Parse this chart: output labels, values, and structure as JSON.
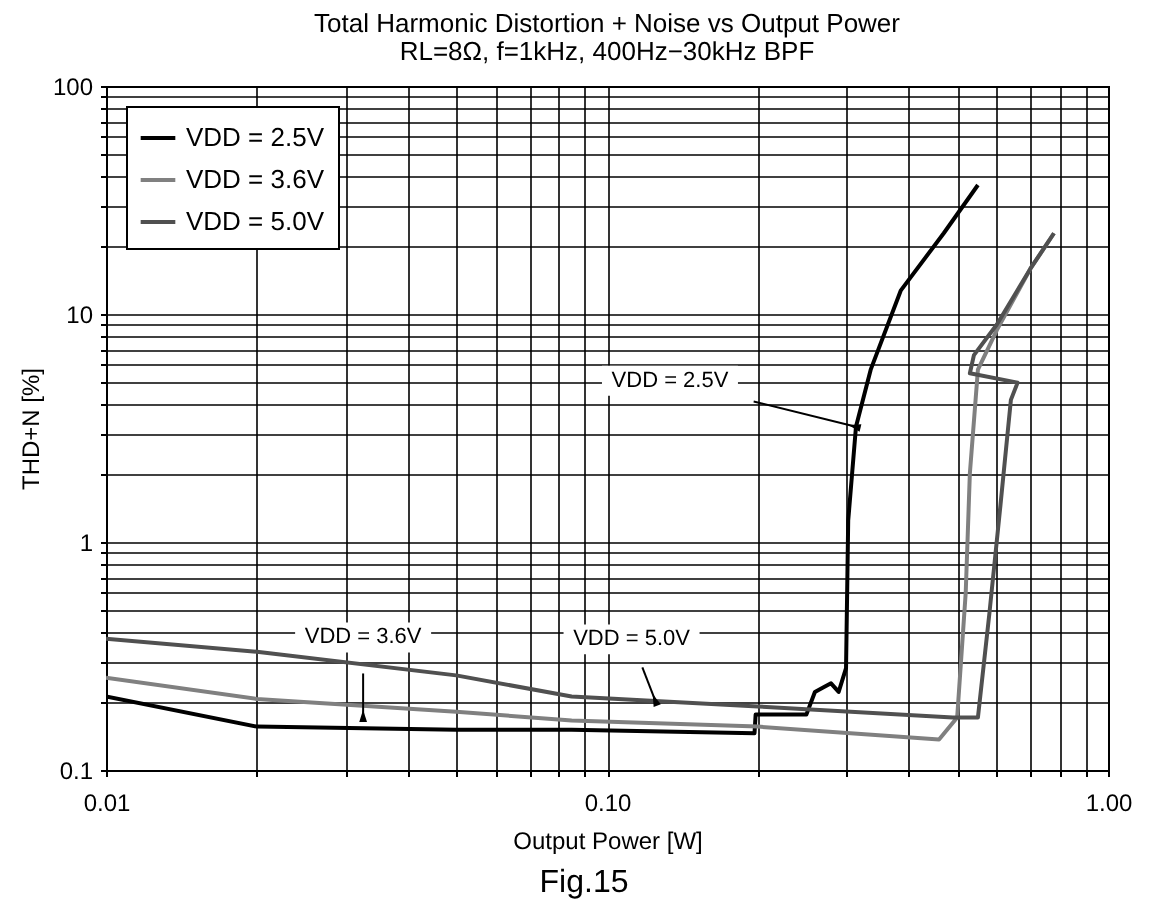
{
  "chart_data": {
    "type": "line",
    "title": "Total Harmonic Distortion + Noise vs Output Power",
    "subtitle": "RL=8Ω, f=1kHz, 400Hz−30kHz BPF",
    "xlabel": "Output Power [W]",
    "ylabel": "THD+N [%]",
    "log": "xy",
    "grid": true,
    "legend": "top left",
    "line_style": "solid",
    "marker": "none",
    "xlim": [
      0.01,
      1
    ],
    "ylim": [
      0.1,
      100
    ],
    "xticks": [
      {
        "value": 0.01,
        "label": "0.01"
      },
      {
        "value": 0.02,
        "label": null
      },
      {
        "value": 0.03,
        "label": null
      },
      {
        "value": 0.04,
        "label": null
      },
      {
        "value": 0.05,
        "label": null
      },
      {
        "value": 0.06,
        "label": null
      },
      {
        "value": 0.07,
        "label": null
      },
      {
        "value": 0.08,
        "label": null
      },
      {
        "value": 0.09,
        "label": null
      },
      {
        "value": 0.1,
        "label": "0.10"
      },
      {
        "value": 0.2,
        "label": null
      },
      {
        "value": 0.3,
        "label": null
      },
      {
        "value": 0.4,
        "label": null
      },
      {
        "value": 0.5,
        "label": null
      },
      {
        "value": 0.6,
        "label": null
      },
      {
        "value": 0.7,
        "label": null
      },
      {
        "value": 0.8,
        "label": null
      },
      {
        "value": 0.9,
        "label": null
      },
      {
        "value": 1,
        "label": "1.00"
      }
    ],
    "yticks": [
      {
        "value": 0.1,
        "label": "0.1"
      },
      {
        "value": 0.2,
        "label": null
      },
      {
        "value": 0.3,
        "label": null
      },
      {
        "value": 0.4,
        "label": null
      },
      {
        "value": 0.5,
        "label": null
      },
      {
        "value": 0.6,
        "label": null
      },
      {
        "value": 0.7,
        "label": null
      },
      {
        "value": 0.8,
        "label": null
      },
      {
        "value": 0.9,
        "label": null
      },
      1,
      {
        "value": 2,
        "label": null
      },
      {
        "value": 3,
        "label": null
      },
      {
        "value": 4,
        "label": null
      },
      {
        "value": 5,
        "label": null
      },
      {
        "value": 6,
        "label": null
      },
      {
        "value": 7,
        "label": null
      },
      {
        "value": 8,
        "label": null
      },
      {
        "value": 9,
        "label": null
      },
      10,
      {
        "value": 20,
        "label": null
      },
      {
        "value": 30,
        "label": null
      },
      {
        "value": 40,
        "label": null
      },
      {
        "value": 50,
        "label": null
      },
      {
        "value": 60,
        "label": null
      },
      {
        "value": 70,
        "label": null
      },
      {
        "value": 80,
        "label": null
      },
      {
        "value": 90,
        "label": null
      },
      100
    ],
    "series": [
      {
        "name": "VDD = 2.5V",
        "color": "#000000",
        "x": [
          0.01,
          0.02,
          0.05,
          0.085,
          0.197,
          0.198,
          0.25,
          0.26,
          0.27,
          0.28,
          0.29,
          0.3,
          0.303,
          0.314,
          0.336,
          0.386,
          0.47,
          0.55
        ],
        "values": [
          0.21,
          0.155,
          0.15,
          0.15,
          0.145,
          0.175,
          0.175,
          0.22,
          0.23,
          0.24,
          0.22,
          0.28,
          1.24,
          3.2,
          5.7,
          12.7,
          22.6,
          36.8
        ]
      },
      {
        "name": "VDD = 3.6V",
        "color": "#808080",
        "x": [
          0.01,
          0.02,
          0.05,
          0.085,
          0.2,
          0.46,
          0.5,
          0.52,
          0.53,
          0.55,
          0.6,
          0.7,
          0.78
        ],
        "values": [
          0.254,
          0.205,
          0.18,
          0.165,
          0.155,
          0.136,
          0.17,
          0.6,
          2,
          5.7,
          8.5,
          15.8,
          22.6
        ]
      },
      {
        "name": "VDD = 5.0V",
        "color": "#505050",
        "x": [
          0.01,
          0.02,
          0.05,
          0.085,
          0.2,
          0.49,
          0.55,
          0.58,
          0.61,
          0.64,
          0.66,
          0.53,
          0.54,
          0.6,
          0.7,
          0.78
        ],
        "values": [
          0.376,
          0.33,
          0.26,
          0.21,
          0.19,
          0.17,
          0.17,
          0.49,
          1.45,
          4.2,
          5,
          5.5,
          6.6,
          9,
          15.8,
          22.6
        ]
      }
    ],
    "annotations": [
      {
        "text": "VDD = 2.5V",
        "x": 0.314,
        "y": 3.2
      },
      {
        "text": "VDD = 3.6V",
        "x": 0.0326,
        "y": 0.17
      },
      {
        "text": "VDD = 5.0V",
        "x": 0.125,
        "y": 0.2
      },
      "Fig.15"
    ]
  }
}
